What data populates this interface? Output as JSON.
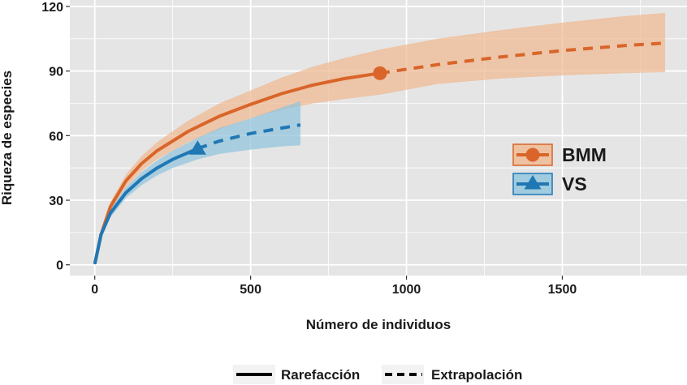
{
  "chart_data": {
    "type": "line",
    "xlabel": "Número de individuos",
    "ylabel": "Riqueza de especies",
    "xlim": [
      -80,
      1900
    ],
    "ylim": [
      -5,
      123
    ],
    "x_ticks": [
      0,
      500,
      1000,
      1500
    ],
    "y_ticks": [
      0,
      30,
      60,
      90,
      120
    ],
    "grid": true,
    "series": [
      {
        "name": "BMM",
        "color": "#d9652a",
        "band_color": "#f0b890",
        "marker": "circle",
        "reference_sample": {
          "x": 915,
          "y": 89
        },
        "rarefaction": {
          "x": [
            1,
            20,
            50,
            100,
            150,
            200,
            300,
            400,
            500,
            600,
            700,
            800,
            915
          ],
          "y": [
            1,
            14,
            27,
            39,
            47,
            53,
            62,
            69,
            74.5,
            79.5,
            83.5,
            86.5,
            89
          ],
          "lower": [
            1,
            13,
            25,
            36,
            43.5,
            49,
            57,
            63,
            68,
            72,
            75,
            77,
            79
          ],
          "upper": [
            1,
            15,
            29,
            42,
            50.5,
            57,
            67,
            75,
            81,
            87,
            92,
            96,
            100
          ]
        },
        "extrapolation": {
          "x": [
            915,
            1100,
            1300,
            1500,
            1700,
            1830
          ],
          "y": [
            89,
            93,
            96.5,
            99.5,
            101.8,
            103
          ],
          "lower": [
            79,
            84,
            86.5,
            88,
            89,
            89.5
          ],
          "upper": [
            100,
            105,
            109,
            112.5,
            115.5,
            117
          ]
        }
      },
      {
        "name": "VS",
        "color": "#1f77b4",
        "band_color": "#90c4dc",
        "marker": "triangle",
        "reference_sample": {
          "x": 330,
          "y": 54
        },
        "rarefaction": {
          "x": [
            1,
            20,
            50,
            100,
            150,
            200,
            250,
            330
          ],
          "y": [
            1,
            14,
            24,
            33.5,
            40,
            45,
            49,
            54
          ],
          "lower": [
            1,
            13,
            22,
            31,
            37,
            41.5,
            45,
            49
          ],
          "upper": [
            1,
            15,
            26,
            36,
            43,
            48.5,
            53,
            59
          ]
        },
        "extrapolation": {
          "x": [
            330,
            400,
            500,
            600,
            660
          ],
          "y": [
            54,
            57.5,
            61,
            63.5,
            65
          ],
          "lower": [
            49,
            51.5,
            53.5,
            55,
            55.5
          ],
          "upper": [
            59,
            63.5,
            68,
            73,
            76
          ]
        }
      }
    ],
    "legend": {
      "placement": "right-center",
      "entries": [
        "BMM",
        "VS"
      ]
    },
    "line_type_legend": {
      "placement": "bottom",
      "entries": [
        {
          "label": "Rarefacción",
          "style": "solid"
        },
        {
          "label": "Extrapolación",
          "style": "dashed"
        }
      ]
    }
  },
  "colors": {
    "panel_background": "#e5e5e5",
    "grid": "#ffffff",
    "text": "#1a1a1a"
  }
}
